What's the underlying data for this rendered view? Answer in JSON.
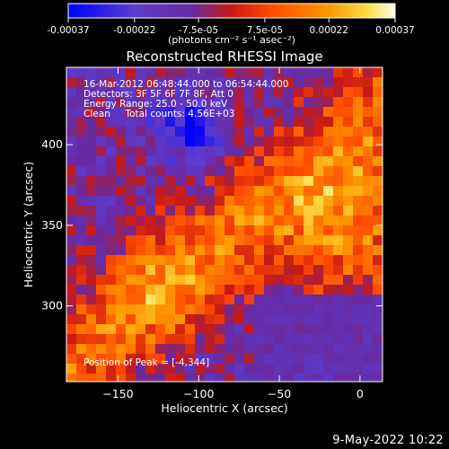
{
  "colorbar": {
    "tick_labels": [
      "-0.00037",
      "-0.00022",
      "-7.5e-05",
      "7.5e-05",
      "0.00022",
      "0.00037"
    ],
    "tick_values": [
      -0.00037,
      -0.00022,
      -7.5e-05,
      7.5e-05,
      0.00022,
      0.00037
    ],
    "range": [
      -0.00037,
      0.00037
    ],
    "units_label": "(photons cm⁻² s⁻¹ asec⁻²)"
  },
  "chart_data": {
    "type": "heatmap",
    "title": "Reconstructed RHESSI Image",
    "xlabel": "Heliocentric X (arcsec)",
    "ylabel": "Heliocentric Y (arcsec)",
    "xlim": [
      -182,
      14
    ],
    "ylim": [
      253,
      448
    ],
    "x_ticks": [
      -150,
      -100,
      -50,
      0
    ],
    "y_ticks": [
      300,
      350,
      400
    ],
    "colormap": [
      "#0000ff",
      "#5a3ccf",
      "#6a2aa0",
      "#c81a14",
      "#ff4a00",
      "#ff9a00",
      "#ffe04a",
      "#ffffe0"
    ],
    "annotations": [
      "16-Mar-2012 06:48:44.000 to 06:54:44.000",
      "Detectors: 3F 5F 6F 7F 8F, Att 0",
      "Energy Range: 25.0 - 50.0 keV",
      "Clean     Total counts: 4.56E+03"
    ],
    "peak_label": "Position of Peak = [-4,344]",
    "peak": [
      -4,
      344
    ]
  },
  "footer": {
    "date": "9-May-2022 10:22"
  }
}
